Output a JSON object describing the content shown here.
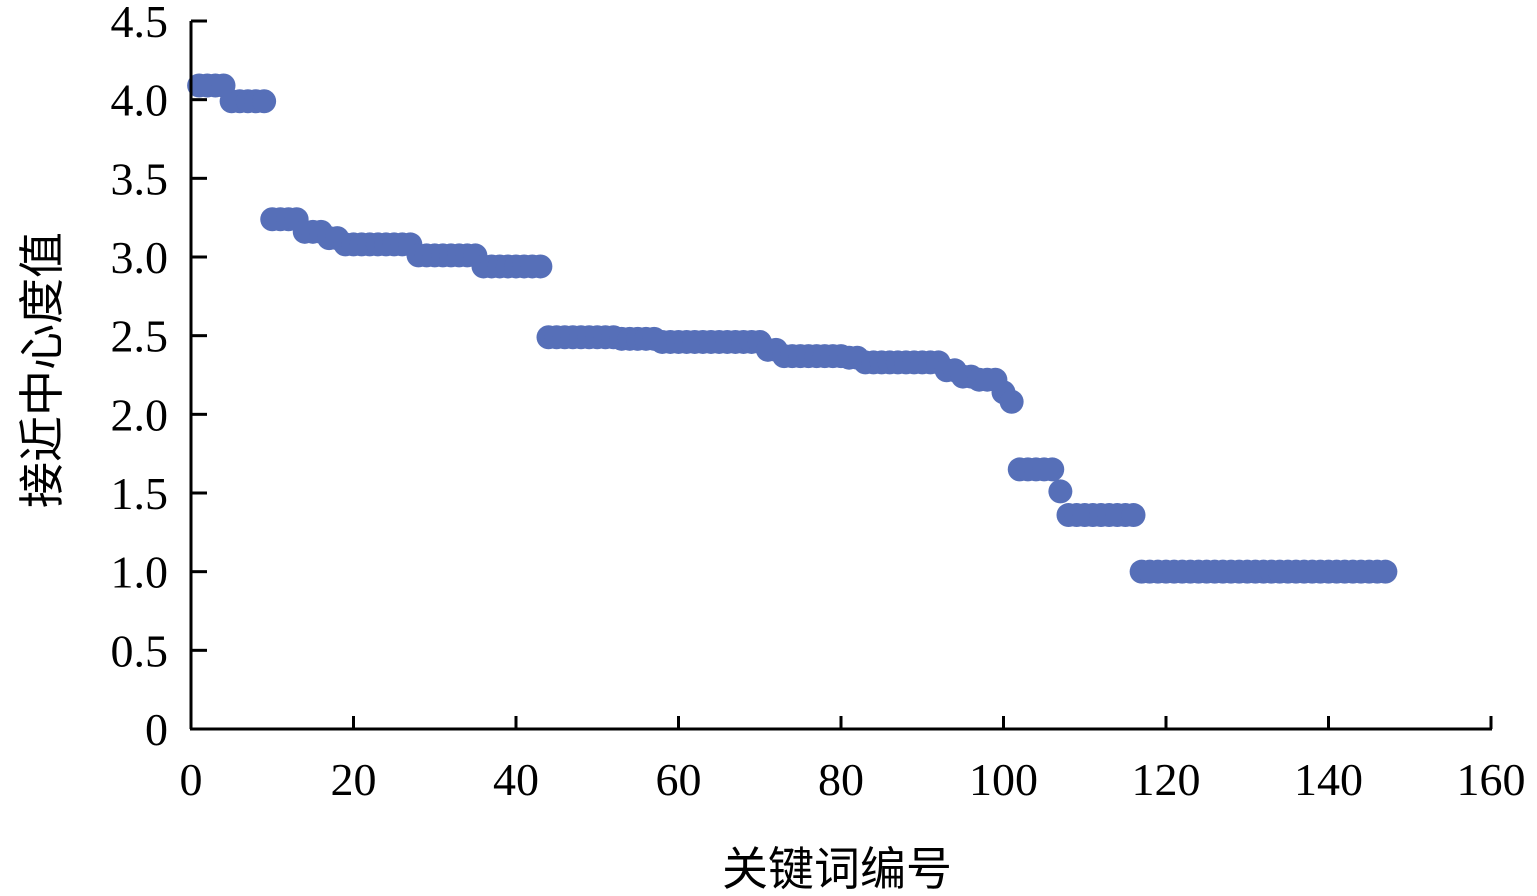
{
  "chart_data": {
    "type": "scatter",
    "title": "",
    "xlabel": "关键词编号",
    "ylabel": "接近中心度值",
    "xlim": [
      0,
      160
    ],
    "ylim": [
      0,
      4.5
    ],
    "x_ticks": [
      "0",
      "20",
      "40",
      "60",
      "80",
      "100",
      "120",
      "140",
      "160"
    ],
    "y_ticks": [
      "0",
      "0.5",
      "1.0",
      "1.5",
      "2.0",
      "2.5",
      "3.0",
      "3.5",
      "4.0",
      "4.5"
    ],
    "grid": false,
    "marker_color": "#566fb8",
    "series": [
      {
        "x": [
          1,
          2,
          3,
          4,
          5,
          6,
          7,
          8,
          9,
          10,
          11,
          12,
          13,
          14,
          15,
          16,
          17,
          18,
          19,
          20,
          21,
          22,
          23,
          24,
          25,
          26,
          27,
          28,
          29,
          30,
          31,
          32,
          33,
          34,
          35,
          36,
          37,
          38,
          39,
          40,
          41,
          42,
          43,
          44,
          45,
          46,
          47,
          48,
          49,
          50,
          51,
          52,
          53,
          54,
          55,
          56,
          57,
          58,
          59,
          60,
          61,
          62,
          63,
          64,
          65,
          66,
          67,
          68,
          69,
          70,
          71,
          72,
          73,
          74,
          75,
          76,
          77,
          78,
          79,
          80,
          81,
          82,
          83,
          84,
          85,
          86,
          87,
          88,
          89,
          90,
          91,
          92,
          93,
          94,
          95,
          96,
          97,
          98,
          99,
          100,
          101,
          102,
          103,
          104,
          105,
          106,
          107,
          108,
          109,
          110,
          111,
          112,
          113,
          114,
          115,
          116,
          117,
          118,
          119,
          120,
          121,
          122,
          123,
          124,
          125,
          126,
          127,
          128,
          129,
          130,
          131,
          132,
          133,
          134,
          135,
          136,
          137,
          138,
          139,
          140,
          141,
          142,
          143,
          144,
          145,
          146,
          147
        ],
        "y": [
          4.09,
          4.09,
          4.09,
          4.09,
          3.99,
          3.99,
          3.99,
          3.99,
          3.99,
          3.24,
          3.24,
          3.24,
          3.24,
          3.16,
          3.16,
          3.16,
          3.12,
          3.12,
          3.08,
          3.08,
          3.08,
          3.08,
          3.08,
          3.08,
          3.08,
          3.08,
          3.08,
          3.01,
          3.01,
          3.01,
          3.01,
          3.01,
          3.01,
          3.01,
          3.01,
          2.94,
          2.94,
          2.94,
          2.94,
          2.94,
          2.94,
          2.94,
          2.94,
          2.49,
          2.49,
          2.49,
          2.49,
          2.49,
          2.49,
          2.49,
          2.49,
          2.49,
          2.48,
          2.48,
          2.48,
          2.48,
          2.48,
          2.46,
          2.46,
          2.46,
          2.46,
          2.46,
          2.46,
          2.46,
          2.46,
          2.46,
          2.46,
          2.46,
          2.46,
          2.46,
          2.41,
          2.41,
          2.37,
          2.37,
          2.37,
          2.37,
          2.37,
          2.37,
          2.37,
          2.37,
          2.36,
          2.36,
          2.33,
          2.33,
          2.33,
          2.33,
          2.33,
          2.33,
          2.33,
          2.33,
          2.33,
          2.33,
          2.28,
          2.28,
          2.24,
          2.24,
          2.22,
          2.22,
          2.22,
          2.14,
          2.08,
          1.65,
          1.65,
          1.65,
          1.65,
          1.65,
          1.51,
          1.36,
          1.36,
          1.36,
          1.36,
          1.36,
          1.36,
          1.36,
          1.36,
          1.36,
          1.0,
          1.0,
          1.0,
          1.0,
          1.0,
          1.0,
          1.0,
          1.0,
          1.0,
          1.0,
          1.0,
          1.0,
          1.0,
          1.0,
          1.0,
          1.0,
          1.0,
          1.0,
          1.0,
          1.0,
          1.0,
          1.0,
          1.0,
          1.0,
          1.0,
          1.0,
          1.0,
          1.0,
          1.0,
          1.0,
          1.0
        ]
      }
    ]
  }
}
